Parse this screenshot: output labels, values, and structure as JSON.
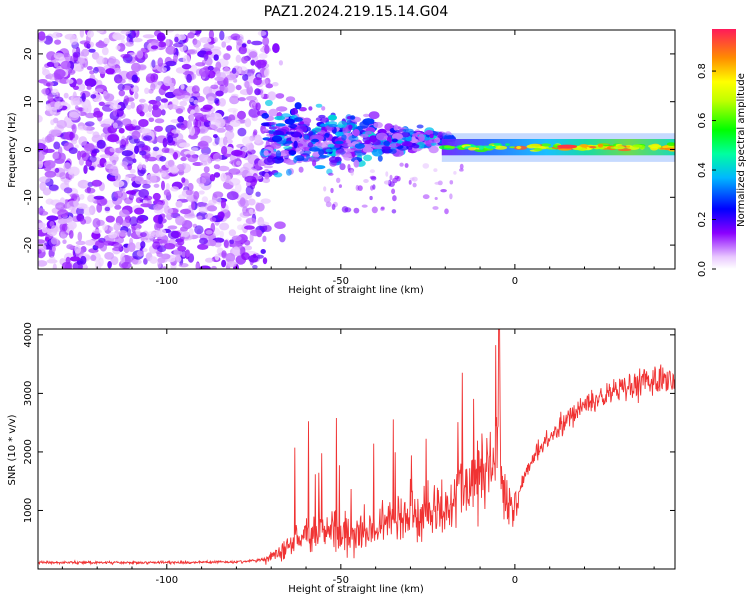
{
  "figure": {
    "title": "PAZ1.2024.219.15.14.G04"
  },
  "chart_data": [
    {
      "type": "heatmap",
      "title": "PAZ1.2024.219.15.14.G04",
      "xlabel": "Height of straight line (km)",
      "ylabel": "Frequency (Hz)",
      "xlim": [
        -137,
        46
      ],
      "ylim": [
        -25,
        25
      ],
      "x_ticks": [
        -100,
        -50,
        0
      ],
      "y_ticks": [
        -20,
        -10,
        0,
        10,
        20
      ],
      "colorbar": {
        "label": "Normalized spectral amplitude",
        "range": [
          0,
          0.97
        ],
        "ticks": [
          "0.0",
          "0.2",
          "0.4",
          "0.6",
          "0.8"
        ],
        "tick_values": [
          0.0,
          0.2,
          0.4,
          0.6,
          0.8
        ]
      },
      "regions": [
        {
          "x_range": [
            -137,
            -72
          ],
          "freq_range": [
            -25,
            25
          ],
          "amplitude": 0.12,
          "pattern": "scattered noise"
        },
        {
          "x_range": [
            -72,
            -20
          ],
          "freq_range": [
            -10,
            10
          ],
          "amplitude": 0.25,
          "pattern": "signal spread around 0 Hz"
        },
        {
          "x_range": [
            -20,
            0
          ],
          "freq_center": 0.5,
          "amplitude": 0.5,
          "pattern": "narrow band"
        },
        {
          "x_range": [
            0,
            46
          ],
          "freq_center": 0.5,
          "amplitude": 0.8,
          "pattern": "narrow band, strongest"
        }
      ]
    },
    {
      "type": "line",
      "xlabel": "Height of straight line (km)",
      "ylabel": "SNR (10 * v/v)",
      "xlim": [
        -137,
        46
      ],
      "ylim": [
        0,
        4100
      ],
      "x_ticks": [
        -100,
        -50,
        0
      ],
      "y_ticks": [
        1000,
        2000,
        3000,
        4000
      ],
      "color": "#f03333",
      "series": [
        {
          "x": [
            -137,
            -120,
            -100,
            -80,
            -72,
            -68,
            -64,
            -60,
            -56,
            -52,
            -48,
            -44,
            -40,
            -36,
            -32,
            -28,
            -24,
            -20,
            -16,
            -12,
            -8,
            -5,
            -4.5,
            -4,
            -2,
            0,
            5,
            10,
            15,
            20,
            25,
            30,
            35,
            40,
            46
          ],
          "y": [
            110,
            110,
            110,
            120,
            160,
            280,
            450,
            600,
            650,
            620,
            600,
            640,
            720,
            800,
            860,
            900,
            960,
            1060,
            1300,
            1500,
            1700,
            1900,
            4100,
            1800,
            1000,
            1100,
            1900,
            2250,
            2550,
            2800,
            2950,
            3050,
            3150,
            3200,
            3250
          ]
        }
      ]
    }
  ]
}
